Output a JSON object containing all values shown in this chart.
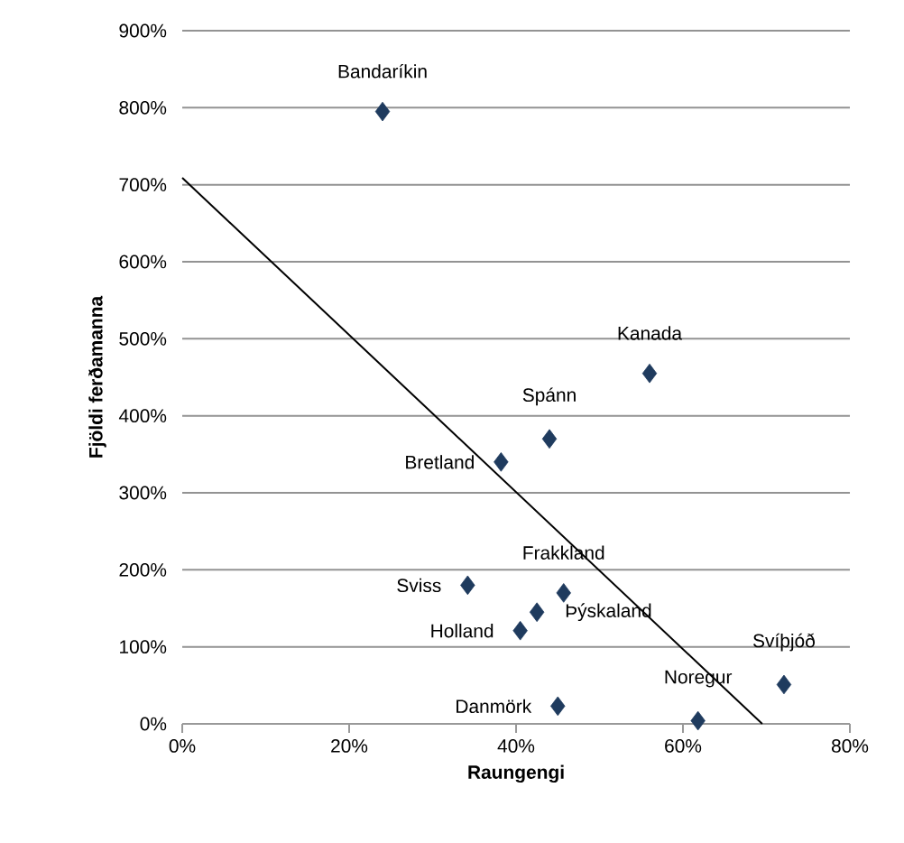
{
  "chart_data": {
    "type": "scatter",
    "xlabel": "Raungengi",
    "ylabel": "Fjöldi ferðamanna",
    "xlim": [
      0,
      80
    ],
    "ylim": [
      0,
      900
    ],
    "xticks": [
      {
        "value": 0,
        "label": "0%"
      },
      {
        "value": 20,
        "label": "20%"
      },
      {
        "value": 40,
        "label": "40%"
      },
      {
        "value": 60,
        "label": "60%"
      },
      {
        "value": 80,
        "label": "80%"
      }
    ],
    "yticks": [
      {
        "value": 0,
        "label": "0%"
      },
      {
        "value": 100,
        "label": "100%"
      },
      {
        "value": 200,
        "label": "200%"
      },
      {
        "value": 300,
        "label": "300%"
      },
      {
        "value": 400,
        "label": "400%"
      },
      {
        "value": 500,
        "label": "500%"
      },
      {
        "value": 600,
        "label": "600%"
      },
      {
        "value": 700,
        "label": "700%"
      },
      {
        "value": 800,
        "label": "800%"
      },
      {
        "value": 900,
        "label": "900%"
      }
    ],
    "grid": "y",
    "series": [
      {
        "color": "#1f3b5e",
        "marker": "diamond",
        "x": [
          24,
          56,
          44,
          38.2,
          34.2,
          45.7,
          42.5,
          40.5,
          45,
          61.8,
          72.1
        ],
        "values": [
          795,
          455,
          370,
          340,
          180,
          170,
          145,
          121,
          23,
          4,
          51
        ]
      },
      {
        "type": "line",
        "color": "#000000",
        "marker": "none",
        "line_style": "solid",
        "x": [
          0,
          69.5
        ],
        "values": [
          709,
          0
        ]
      }
    ],
    "annotations": [
      {
        "text": "Bandaríkin",
        "x": 24,
        "y": 795
      },
      {
        "text": "Kanada",
        "x": 56,
        "y": 455
      },
      {
        "text": "Spánn",
        "x": 44,
        "y": 370
      },
      {
        "text": "Bretland",
        "x": 38.2,
        "y": 340
      },
      {
        "text": "Sviss",
        "x": 34.2,
        "y": 180
      },
      {
        "text": "Frakkland",
        "x": 45.7,
        "y": 170
      },
      {
        "text": "Þýskaland",
        "x": 42.5,
        "y": 145
      },
      {
        "text": "Holland",
        "x": 40.5,
        "y": 121
      },
      {
        "text": "Danmörk",
        "x": 45,
        "y": 23
      },
      {
        "text": "Noregur",
        "x": 61.8,
        "y": 4
      },
      {
        "text": "Svíþjóð",
        "x": 72.1,
        "y": 51
      }
    ]
  }
}
